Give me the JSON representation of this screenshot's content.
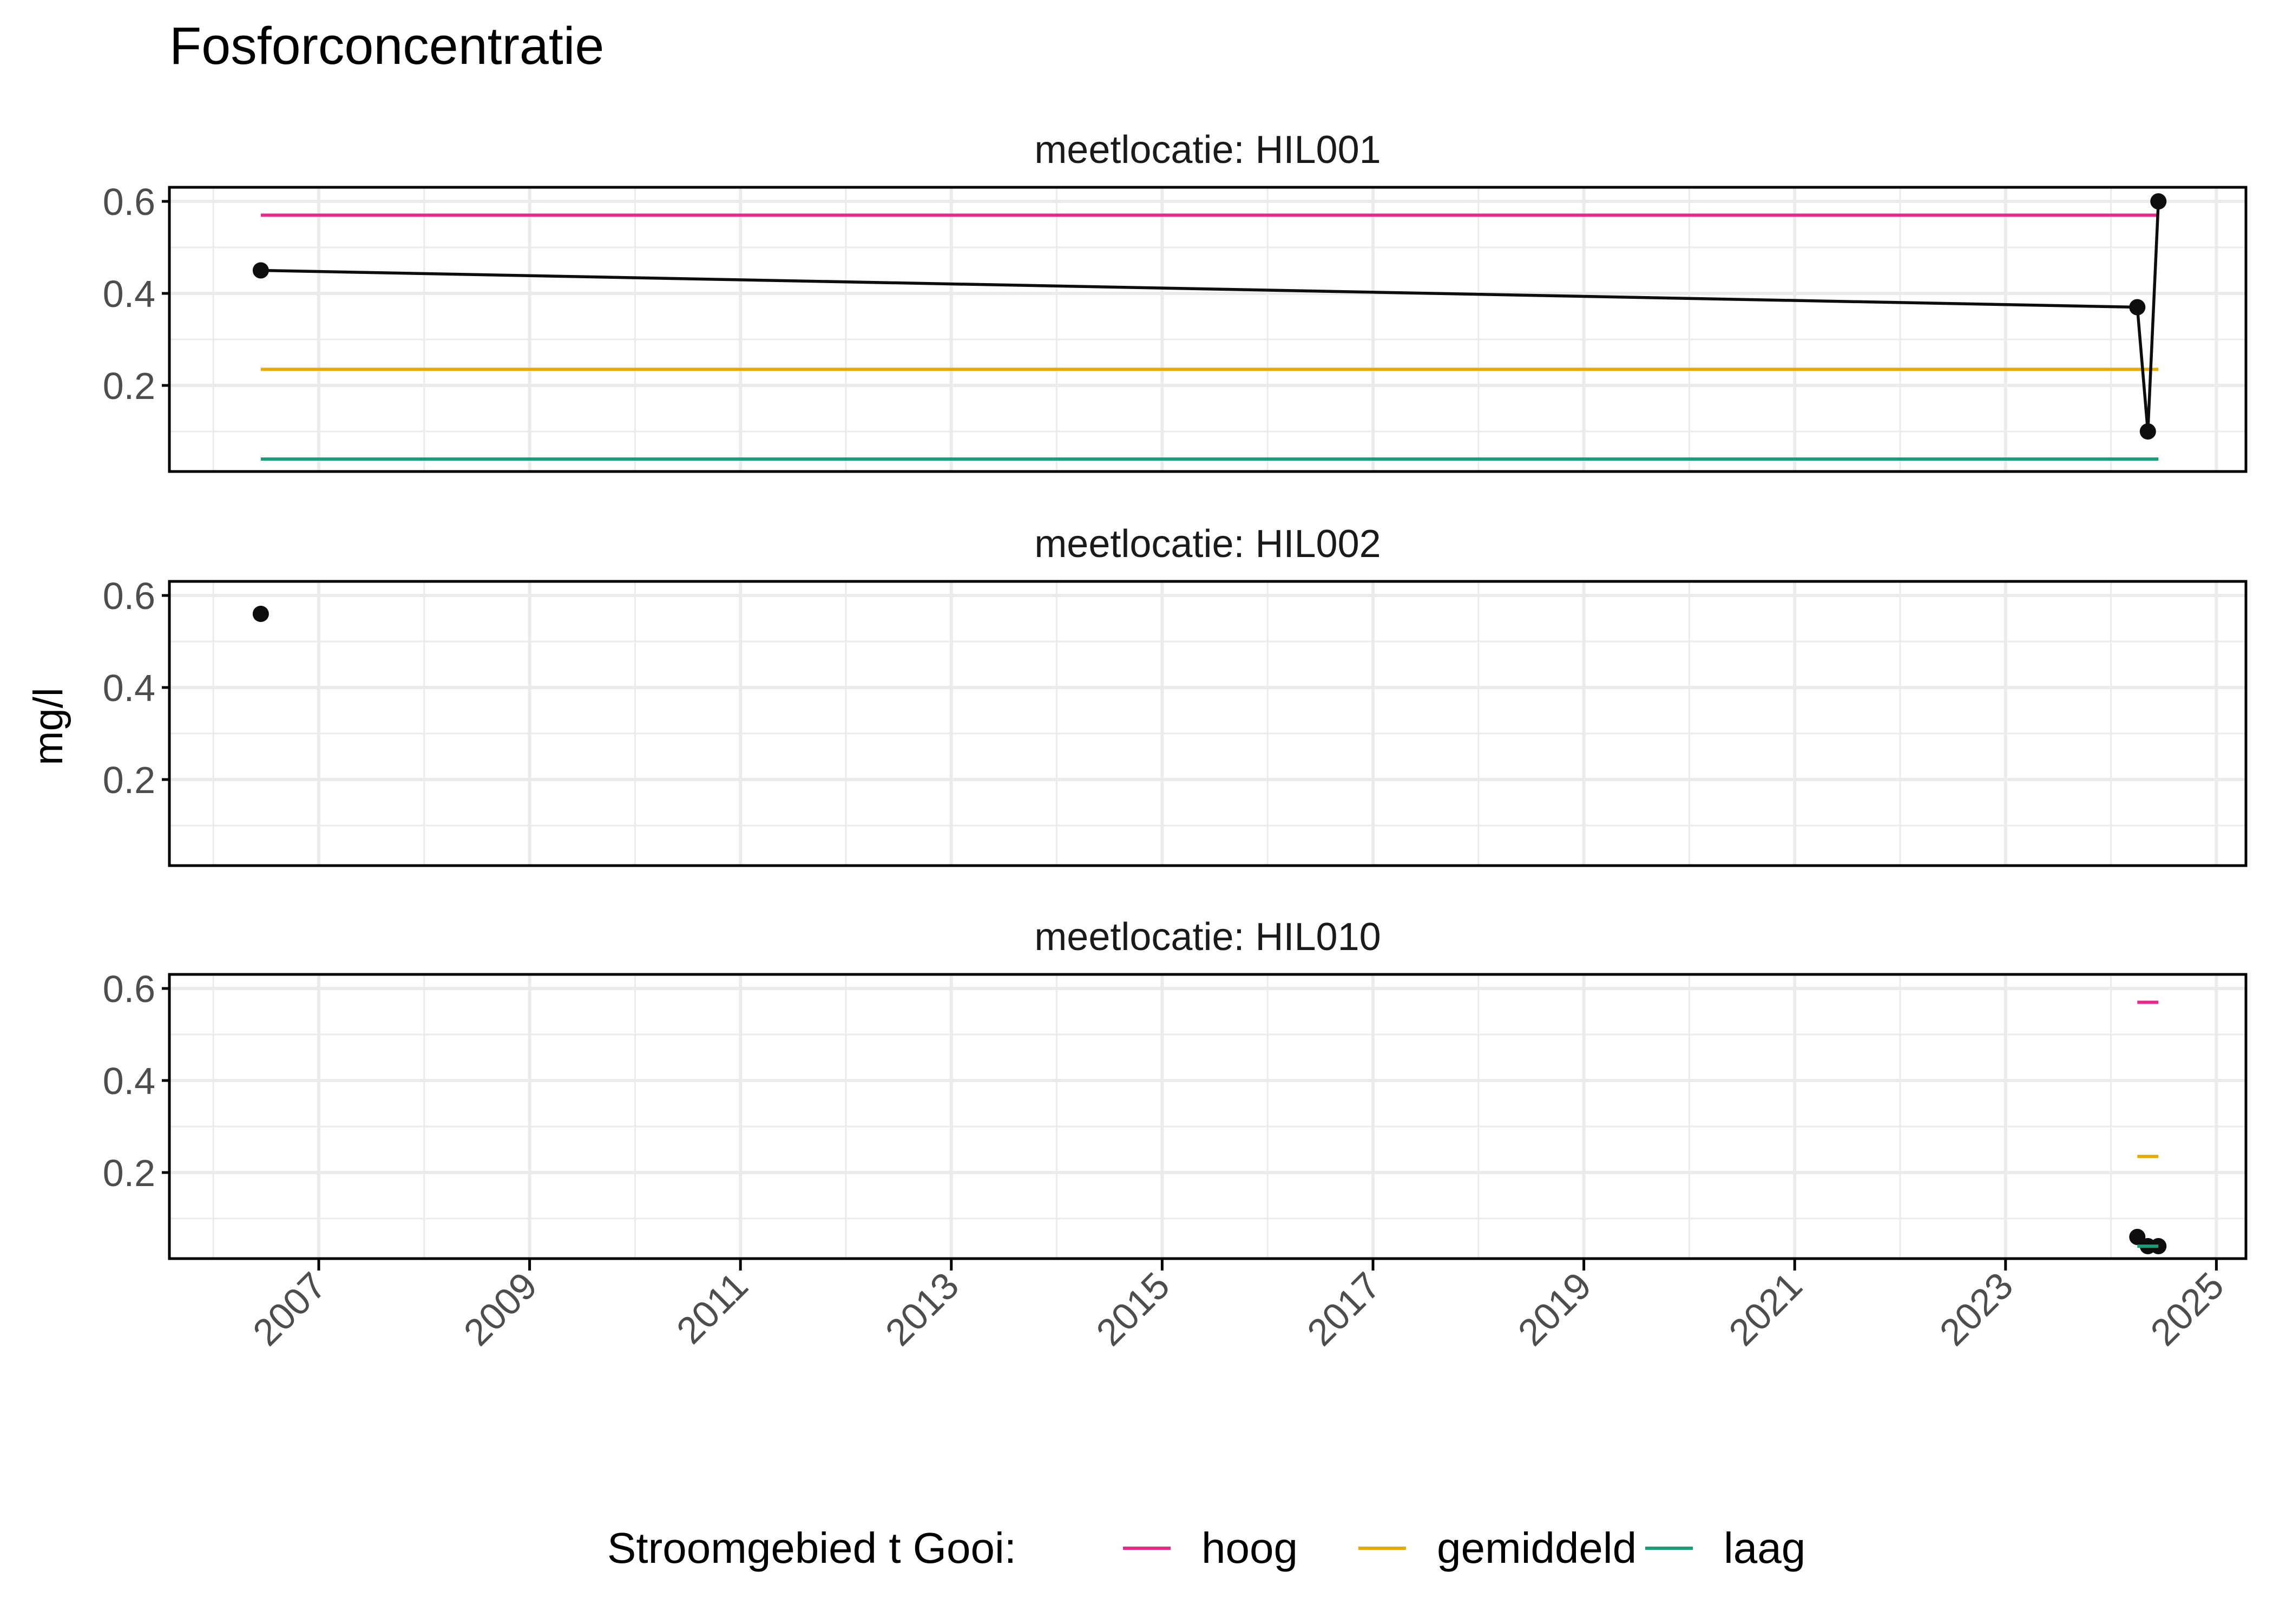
{
  "title": "Fosforconcentratie",
  "y_axis_label": "mg/l",
  "legend": {
    "title": "Stroomgebied t Gooi:",
    "items": [
      {
        "label": "hoog",
        "color": "#E7298A"
      },
      {
        "label": "gemiddeld",
        "color": "#E6AB02"
      },
      {
        "label": "laag",
        "color": "#1B9E77"
      }
    ]
  },
  "chart_data": {
    "type": "line",
    "title": "Fosforconcentratie",
    "xlabel": "",
    "ylabel": "mg/l",
    "x_tick_labels": [
      "2007",
      "2009",
      "2011",
      "2013",
      "2015",
      "2017",
      "2019",
      "2021",
      "2023",
      "2025"
    ],
    "y_tick_labels": [
      "0.2",
      "0.4",
      "0.6"
    ],
    "xlim": [
      2006.0,
      2025.3
    ],
    "ylim": [
      0.01,
      0.62
    ],
    "grid": true,
    "legend_position": "bottom",
    "facet_by": "meetlocatie",
    "thresholds": [
      {
        "name": "hoog",
        "value": 0.57,
        "color": "#E7298A"
      },
      {
        "name": "gemiddeld",
        "value": 0.235,
        "color": "#E6AB02"
      },
      {
        "name": "laag",
        "value": 0.04,
        "color": "#1B9E77"
      }
    ],
    "panels": [
      {
        "label": "meetlocatie: HIL001",
        "series": [
          {
            "name": "fosfor",
            "x": [
              2006.45,
              2024.25,
              2024.35,
              2024.45
            ],
            "values": [
              0.45,
              0.37,
              0.1,
              0.6
            ]
          }
        ],
        "threshold_range": [
          2006.45,
          2024.45
        ]
      },
      {
        "label": "meetlocatie: HIL002",
        "series": [
          {
            "name": "fosfor",
            "x": [
              2006.45
            ],
            "values": [
              0.56
            ]
          }
        ],
        "threshold_range": null
      },
      {
        "label": "meetlocatie: HIL010",
        "series": [
          {
            "name": "fosfor",
            "x": [
              2024.25,
              2024.35,
              2024.45
            ],
            "values": [
              0.06,
              0.04,
              0.04
            ]
          }
        ],
        "threshold_range": [
          2024.25,
          2024.45
        ]
      }
    ]
  }
}
